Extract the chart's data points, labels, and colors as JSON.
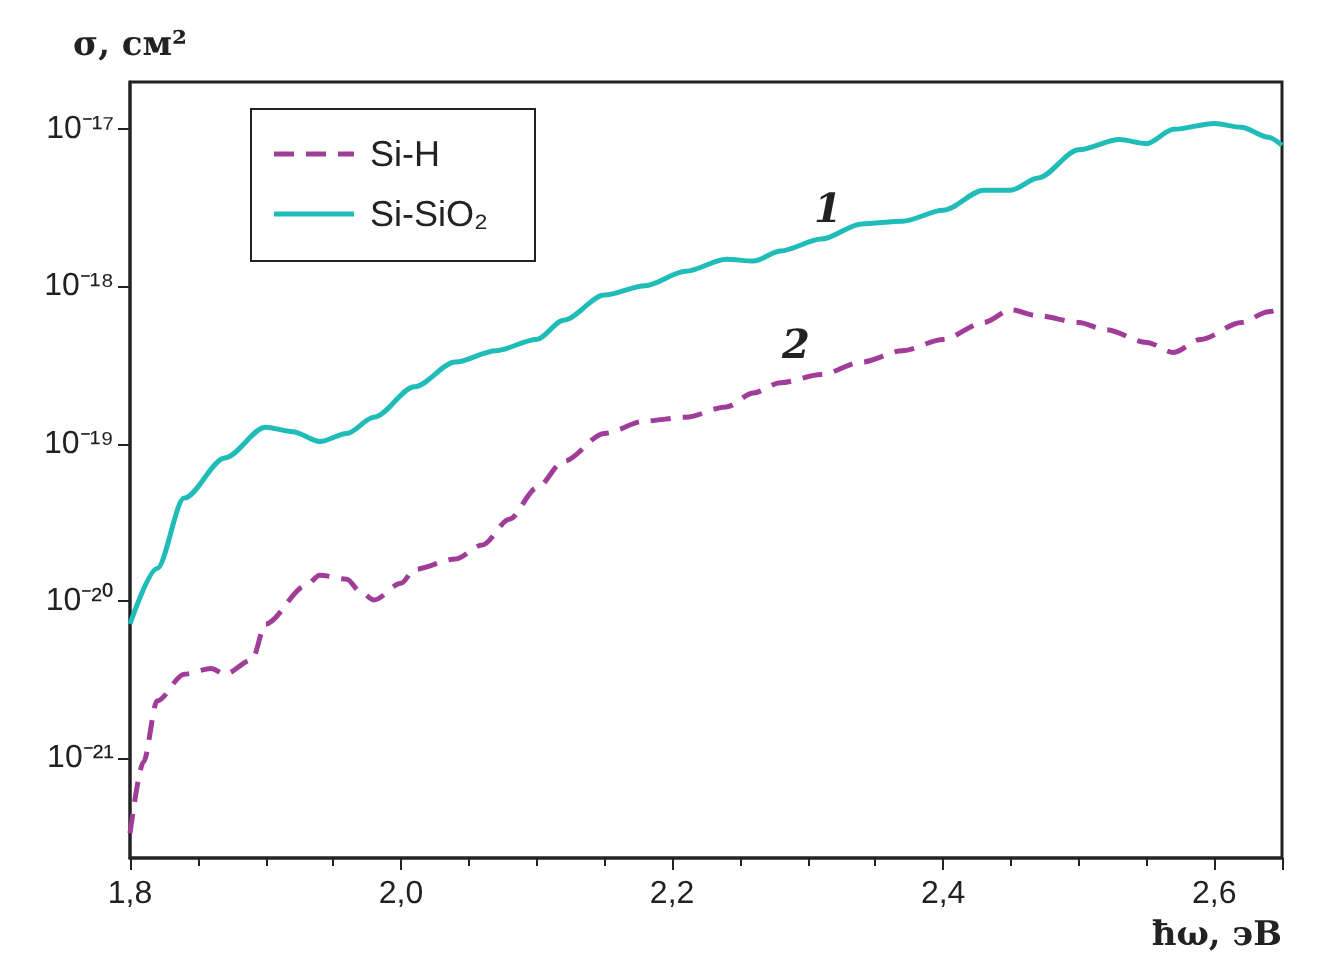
{
  "chart_data": {
    "type": "line",
    "xlabel": "ħω, эВ",
    "ylabel": "σ, см²",
    "xlim": [
      1.8,
      2.65
    ],
    "xticks": [
      {
        "value": 1.8,
        "label": "1,8"
      },
      {
        "value": 2.0,
        "label": "2,0"
      },
      {
        "value": 2.2,
        "label": "2,2"
      },
      {
        "value": 2.4,
        "label": "2,4"
      },
      {
        "value": 2.6,
        "label": "2,6"
      }
    ],
    "ylim": [
      2.3e-22,
      2e-17
    ],
    "yticks": [
      {
        "value": 1e-21,
        "label": "10⁻²¹"
      },
      {
        "value": 1e-20,
        "label": "10⁻²⁰"
      },
      {
        "value": 1e-19,
        "label": "10⁻¹⁹"
      },
      {
        "value": 1e-18,
        "label": "10⁻¹⁸"
      },
      {
        "value": 1e-17,
        "label": "10⁻¹⁷"
      }
    ],
    "log": "y",
    "grid": false,
    "legend": "top left",
    "marker": "none",
    "annotations": [
      "1",
      "2"
    ],
    "series": [
      {
        "name": "Si-H",
        "color": "#a03d98",
        "line_style": "dashed",
        "x": [
          1.8,
          1.81,
          1.82,
          1.84,
          1.86,
          1.87,
          1.89,
          1.9,
          1.93,
          1.94,
          1.96,
          1.97,
          1.98,
          2.0,
          2.01,
          2.04,
          2.06,
          2.08,
          2.1,
          2.12,
          2.15,
          2.18,
          2.21,
          2.24,
          2.26,
          2.28,
          2.31,
          2.34,
          2.37,
          2.4,
          2.43,
          2.45,
          2.47,
          2.5,
          2.52,
          2.55,
          2.57,
          2.59,
          2.62,
          2.64,
          2.65
        ],
        "values": [
          3.3e-22,
          9.4e-22,
          2.3e-21,
          3.4e-21,
          3.7e-21,
          3.4e-21,
          4.2e-21,
          7.1e-21,
          1.25e-20,
          1.45e-20,
          1.37e-20,
          1.14e-20,
          1.01e-20,
          1.29e-20,
          1.58e-20,
          1.84e-20,
          2.26e-20,
          3.3e-20,
          5.2e-20,
          7.7e-20,
          1.16e-19,
          1.39e-19,
          1.47e-19,
          1.71e-19,
          2.1e-19,
          2.44e-19,
          2.75e-19,
          3.3e-19,
          3.9e-19,
          4.6e-19,
          5.9e-19,
          7.1e-19,
          6.5e-19,
          5.9e-19,
          5.3e-19,
          4.4e-19,
          3.8e-19,
          4.6e-19,
          5.9e-19,
          6.9e-19,
          7.3e-19
        ]
      },
      {
        "name": "Si-SiO₂",
        "color": "#1fbcb8",
        "line_style": "solid",
        "x": [
          1.8,
          1.82,
          1.84,
          1.87,
          1.9,
          1.92,
          1.94,
          1.96,
          1.98,
          2.01,
          2.04,
          2.07,
          2.1,
          2.12,
          2.15,
          2.18,
          2.21,
          2.24,
          2.26,
          2.28,
          2.31,
          2.34,
          2.37,
          2.4,
          2.43,
          2.45,
          2.47,
          2.5,
          2.53,
          2.55,
          2.57,
          2.6,
          2.62,
          2.64,
          2.65
        ],
        "values": [
          7.1e-21,
          1.6e-20,
          4.5e-20,
          8.1e-20,
          1.27e-19,
          1.19e-19,
          1.03e-19,
          1.16e-19,
          1.47e-19,
          2.3e-19,
          3.3e-19,
          3.9e-19,
          4.6e-19,
          6.1e-19,
          8.8e-19,
          1.01e-18,
          1.25e-18,
          1.49e-18,
          1.45e-18,
          1.68e-18,
          2e-18,
          2.5e-18,
          2.6e-18,
          3.05e-18,
          4.1e-18,
          4.1e-18,
          4.9e-18,
          7.4e-18,
          8.6e-18,
          8.1e-18,
          1e-17,
          1.09e-17,
          1.03e-17,
          8.9e-18,
          7.9e-18
        ]
      }
    ]
  }
}
